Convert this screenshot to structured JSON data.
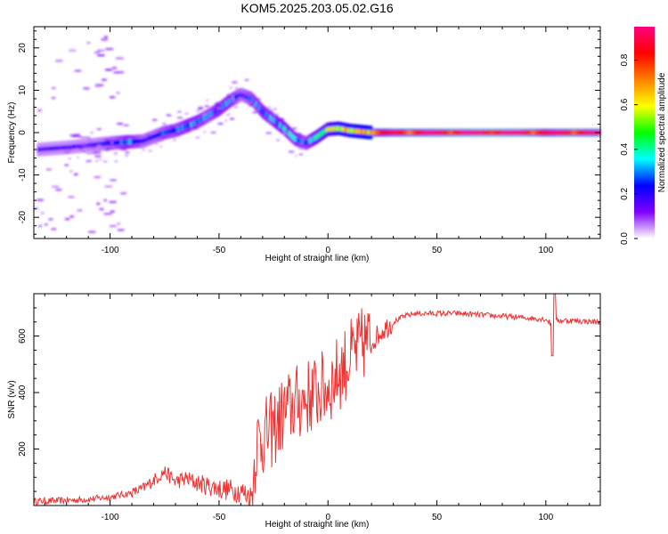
{
  "title": "KOM5.2025.203.05.02.G16",
  "chart_data": [
    {
      "type": "heatmap",
      "xlabel": "Height of straight line (km)",
      "ylabel": "Frequency (Hz)",
      "xlim": [
        -135,
        125
      ],
      "ylim": [
        -25,
        25
      ],
      "xticks": [
        -100,
        -50,
        0,
        50,
        100
      ],
      "yticks": [
        -20,
        -10,
        0,
        10,
        20
      ],
      "colorbar": {
        "label": "Normalized spectral amplitude",
        "range": [
          0,
          0.95
        ],
        "ticks": [
          0.0,
          0.2,
          0.4,
          0.6,
          0.8
        ],
        "colormap": [
          "#ffffff",
          "#8000ff",
          "#0000ff",
          "#00ffff",
          "#00ff00",
          "#ffff00",
          "#ff8000",
          "#ff0000",
          "#ff0080"
        ]
      },
      "ridge": {
        "x": [
          -133,
          -120,
          -110,
          -100,
          -92,
          -85,
          -80,
          -75,
          -70,
          -65,
          -60,
          -55,
          -50,
          -45,
          -40,
          -35,
          -30,
          -25,
          -20,
          -15,
          -10,
          -5,
          0,
          5,
          10,
          20,
          30,
          50,
          70,
          90,
          100,
          110,
          125
        ],
        "frequency": [
          -4,
          -3.5,
          -3,
          -2.5,
          -2.2,
          -2,
          -1,
          0,
          0.5,
          1.5,
          2.5,
          4,
          5.5,
          7.5,
          9,
          8,
          5,
          3,
          1,
          -1.5,
          -2.5,
          -1,
          0.8,
          1,
          0.5,
          0,
          0,
          0,
          0,
          0,
          0,
          0,
          0
        ],
        "amplitude": [
          0.15,
          0.15,
          0.15,
          0.2,
          0.3,
          0.2,
          0.2,
          0.25,
          0.25,
          0.3,
          0.3,
          0.25,
          0.3,
          0.3,
          0.2,
          0.25,
          0.3,
          0.3,
          0.35,
          0.3,
          0.25,
          0.4,
          0.5,
          0.55,
          0.6,
          0.7,
          0.8,
          0.85,
          0.9,
          0.88,
          0.8,
          0.85,
          0.85
        ]
      }
    },
    {
      "type": "line",
      "xlabel": "Height of straight line (km)",
      "ylabel": "SNR (v/v)",
      "xlim": [
        -135,
        125
      ],
      "ylim": [
        0,
        750
      ],
      "xticks": [
        -100,
        -50,
        0,
        50,
        100
      ],
      "yticks": [
        200,
        400,
        600
      ],
      "color": "#ee3333",
      "series": [
        {
          "x": [
            -135,
            -120,
            -110,
            -100,
            -90,
            -85,
            -80,
            -75,
            -70,
            -65,
            -60,
            -55,
            -50,
            -45,
            -40,
            -35,
            -33,
            -30,
            -25,
            -20,
            -15,
            -10,
            -5,
            0,
            5,
            10,
            15,
            17,
            20,
            25,
            30,
            35,
            40,
            50,
            60,
            70,
            80,
            90,
            100,
            103,
            105,
            110,
            125
          ],
          "values": [
            15,
            18,
            22,
            30,
            45,
            60,
            90,
            120,
            85,
            95,
            80,
            70,
            60,
            55,
            50,
            30,
            220,
            240,
            270,
            330,
            360,
            380,
            400,
            420,
            470,
            520,
            560,
            580,
            580,
            620,
            650,
            670,
            680,
            680,
            680,
            675,
            670,
            665,
            660,
            640,
            655,
            655,
            650
          ]
        }
      ]
    }
  ]
}
